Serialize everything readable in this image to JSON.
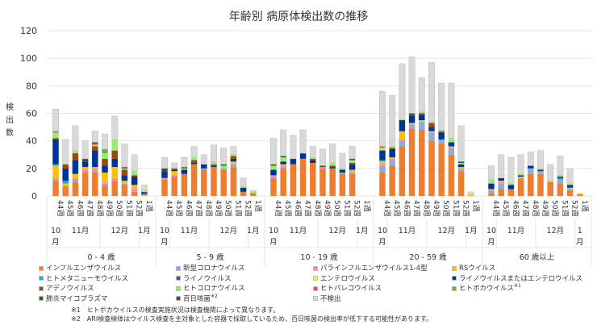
{
  "chart_data": {
    "type": "bar",
    "stacked": true,
    "title": "年齢別 病原体検出数の推移",
    "ylabel": "検出数",
    "ylim": [
      0,
      120
    ],
    "yticks": [
      0,
      20,
      40,
      60,
      80,
      100,
      120
    ],
    "grid": true,
    "legend_position": "bottom",
    "groups": [
      "0 - 4 歳",
      "5 - 9 歳",
      "10 - 19 歳",
      "20 - 59 歳",
      "60 歳以上"
    ],
    "weeks": [
      "44週",
      "45週",
      "46週",
      "47週",
      "48週",
      "49週",
      "50週",
      "51週",
      "52週",
      "1週"
    ],
    "months": [
      {
        "label": "10月",
        "span": 1
      },
      {
        "label": "11月",
        "span": 4
      },
      {
        "label": "12月",
        "span": 4
      },
      {
        "label": "1月",
        "span": 1
      }
    ],
    "series": [
      {
        "name": "インフルエンザウイルス",
        "color": "#ED7D31",
        "values": [
          11,
          7,
          10,
          17,
          17,
          8,
          11,
          8,
          3,
          0,
          12,
          14,
          16,
          23,
          19,
          21,
          19,
          21,
          3,
          2,
          13,
          20,
          23,
          27,
          24,
          20,
          20,
          16,
          16,
          0,
          17,
          22,
          36,
          49,
          48,
          40,
          38,
          30,
          18,
          0,
          2,
          5,
          5,
          12,
          16,
          16,
          10,
          9,
          4,
          1
        ]
      },
      {
        "name": "新型コロナウイルス",
        "color": "#8FAADC",
        "values": [
          1,
          0,
          2,
          0,
          1,
          1,
          0,
          1,
          0,
          0,
          0,
          0,
          0,
          0,
          1,
          0,
          1,
          2,
          0,
          0,
          1,
          1,
          0,
          0,
          0,
          0,
          0,
          1,
          1,
          0,
          5,
          4,
          4,
          3,
          6,
          6,
          3,
          5,
          2,
          0,
          2,
          4,
          0,
          1,
          4,
          2,
          0,
          3,
          1,
          0
        ]
      },
      {
        "name": "パラインフルエンザウイルス1-4型",
        "color": "#FF80D0",
        "values": [
          1,
          0,
          1,
          2,
          2,
          1,
          2,
          0,
          2,
          0,
          0,
          1,
          0,
          0,
          0,
          0,
          0,
          0,
          0,
          0,
          1,
          1,
          0,
          0,
          0,
          1,
          0,
          0,
          0,
          0,
          1,
          1,
          1,
          0,
          0,
          0,
          0,
          0,
          0,
          0,
          0,
          1,
          0,
          0,
          0,
          0,
          0,
          0,
          0,
          0
        ]
      },
      {
        "name": "RSウイルス",
        "color": "#FFC000",
        "values": [
          9,
          2,
          3,
          2,
          1,
          7,
          8,
          2,
          3,
          1,
          1,
          3,
          0,
          0,
          0,
          0,
          0,
          2,
          0,
          0,
          0,
          1,
          0,
          0,
          0,
          0,
          0,
          0,
          2,
          0,
          2,
          1,
          6,
          1,
          1,
          1,
          0,
          1,
          1,
          1,
          1,
          1,
          0,
          1,
          0,
          0,
          1,
          0,
          1,
          1
        ]
      },
      {
        "name": "ヒトメタニューモウイルス",
        "color": "#00B0F0",
        "values": [
          1,
          2,
          0,
          0,
          0,
          0,
          0,
          0,
          0,
          0,
          0,
          0,
          0,
          0,
          0,
          0,
          0,
          0,
          0,
          0,
          0,
          0,
          0,
          0,
          0,
          0,
          0,
          0,
          0,
          0,
          1,
          0,
          0,
          0,
          0,
          0,
          0,
          0,
          0,
          0,
          0,
          0,
          0,
          0,
          0,
          0,
          0,
          1,
          0,
          0
        ]
      },
      {
        "name": "ライノウイルス",
        "color": "#2F5597",
        "values": [
          0,
          0,
          0,
          0,
          0,
          0,
          0,
          0,
          0,
          2,
          0,
          0,
          0,
          0,
          0,
          0,
          0,
          0,
          0,
          0,
          0,
          0,
          0,
          0,
          0,
          0,
          0,
          0,
          0,
          0,
          0,
          0,
          0,
          0,
          0,
          0,
          0,
          0,
          0,
          0,
          0,
          0,
          0,
          0,
          0,
          0,
          0,
          0,
          0,
          0
        ]
      },
      {
        "name": "エンテロウイルス",
        "color": "#FFFF00",
        "values": [
          0,
          0,
          0,
          0,
          0,
          0,
          0,
          0,
          0,
          0,
          0,
          0,
          0,
          0,
          0,
          0,
          0,
          0,
          0,
          0,
          0,
          0,
          0,
          0,
          0,
          0,
          0,
          0,
          0,
          0,
          0,
          0,
          0,
          0,
          0,
          0,
          0,
          0,
          0,
          0,
          0,
          0,
          0,
          0,
          0,
          0,
          0,
          0,
          0,
          0
        ]
      },
      {
        "name": "ライノウイルスまたはエンテロウイルス",
        "color": "#003399",
        "values": [
          18,
          9,
          10,
          4,
          12,
          5,
          6,
          4,
          6,
          0,
          5,
          1,
          3,
          1,
          3,
          1,
          0,
          2,
          3,
          0,
          4,
          2,
          4,
          4,
          2,
          0,
          1,
          2,
          4,
          0,
          7,
          6,
          8,
          5,
          4,
          3,
          5,
          3,
          2,
          0,
          4,
          2,
          3,
          1,
          2,
          1,
          0,
          1,
          2,
          0
        ]
      },
      {
        "name": "アデノウイルス",
        "color": "#9E480E",
        "values": [
          1,
          3,
          5,
          0,
          3,
          5,
          6,
          4,
          1,
          0,
          0,
          1,
          0,
          2,
          0,
          1,
          0,
          2,
          0,
          0,
          0,
          0,
          0,
          0,
          1,
          0,
          1,
          0,
          1,
          0,
          0,
          1,
          0,
          0,
          1,
          3,
          1,
          0,
          0,
          0,
          0,
          0,
          0,
          0,
          0,
          0,
          0,
          0,
          0,
          0
        ]
      },
      {
        "name": "ヒトコロナウイルス",
        "color": "#92F067",
        "values": [
          4,
          0,
          2,
          0,
          1,
          4,
          8,
          1,
          3,
          1,
          0,
          0,
          1,
          2,
          0,
          2,
          2,
          1,
          1,
          1,
          3,
          3,
          0,
          0,
          1,
          0,
          2,
          1,
          2,
          0,
          2,
          1,
          1,
          0,
          1,
          1,
          1,
          3,
          1,
          0,
          3,
          0,
          1,
          1,
          0,
          1,
          0,
          1,
          1,
          0
        ]
      },
      {
        "name": "ヒトパレコウイルス",
        "color": "#FF4B4B",
        "values": [
          1,
          0,
          0,
          0,
          1,
          0,
          0,
          0,
          0,
          0,
          0,
          0,
          0,
          0,
          0,
          0,
          0,
          0,
          0,
          0,
          0,
          0,
          0,
          0,
          0,
          0,
          0,
          0,
          0,
          0,
          1,
          0,
          0,
          0,
          0,
          0,
          0,
          0,
          0,
          0,
          0,
          0,
          0,
          0,
          0,
          0,
          0,
          0,
          0,
          0
        ]
      },
      {
        "name": "ヒトボカウイルス",
        "note": "※1",
        "color": "#70AD47",
        "values": [
          0,
          0,
          0,
          0,
          0,
          3,
          0,
          0,
          0,
          0,
          0,
          0,
          0,
          0,
          0,
          0,
          0,
          0,
          0,
          0,
          0,
          0,
          0,
          0,
          0,
          0,
          0,
          0,
          0,
          0,
          0,
          0,
          0,
          0,
          0,
          0,
          0,
          0,
          0,
          0,
          0,
          0,
          0,
          0,
          0,
          0,
          0,
          0,
          0,
          0
        ]
      },
      {
        "name": "肺炎マイコプラズマ",
        "color": "#375623",
        "values": [
          0,
          0,
          0,
          2,
          1,
          0,
          0,
          1,
          0,
          0,
          2,
          0,
          1,
          0,
          0,
          0,
          1,
          0,
          0,
          0,
          1,
          1,
          0,
          0,
          0,
          1,
          0,
          0,
          1,
          0,
          0,
          0,
          0,
          1,
          0,
          0,
          0,
          0,
          1,
          0,
          0,
          0,
          0,
          0,
          0,
          0,
          0,
          0,
          0,
          0
        ]
      },
      {
        "name": "百日咳菌",
        "note": "※2",
        "color": "#404040",
        "values": [
          0,
          0,
          0,
          0,
          0,
          0,
          0,
          0,
          0,
          0,
          0,
          0,
          0,
          0,
          0,
          0,
          0,
          0,
          0,
          0,
          0,
          0,
          0,
          0,
          0,
          0,
          0,
          0,
          0,
          0,
          0,
          0,
          0,
          1,
          0,
          0,
          0,
          0,
          0,
          0,
          0,
          0,
          0,
          0,
          0,
          0,
          0,
          0,
          0,
          0
        ]
      },
      {
        "name": "不検出",
        "color": "#D9D9D9",
        "values": [
          16,
          18,
          18,
          13,
          8,
          11,
          17,
          17,
          12,
          4,
          8,
          4,
          7,
          8,
          7,
          12,
          12,
          6,
          6,
          1,
          19,
          19,
          17,
          17,
          8,
          12,
          14,
          11,
          9,
          0,
          40,
          37,
          40,
          41,
          25,
          43,
          34,
          40,
          26,
          2,
          10,
          17,
          19,
          14,
          10,
          13,
          12,
          14,
          11,
          0
        ]
      }
    ]
  },
  "notes": [
    "※1　ヒトボカウイルスの検査実施状況は検査機関によって異なります。",
    "※2　ARI検査検体はウイルス検査を主対象とした容器で採取しているため、百日咳菌の検出率が低下する可能性があります。"
  ]
}
